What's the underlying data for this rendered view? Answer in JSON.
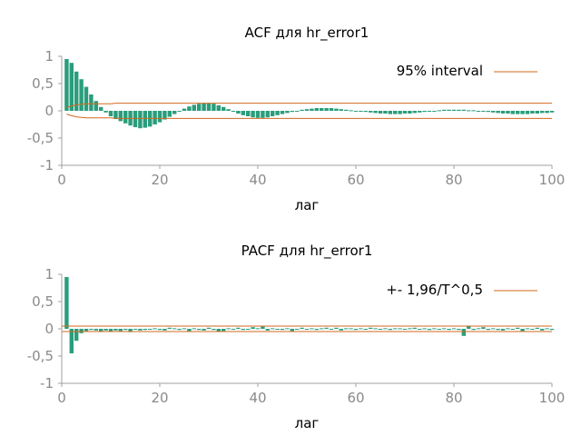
{
  "chart_data": [
    {
      "type": "bar",
      "title": "ACF для hr_error1",
      "xlabel": "лаг",
      "ylabel": "",
      "xlim": [
        0,
        100
      ],
      "ylim": [
        -1,
        1
      ],
      "yticks": [
        "1",
        "0,5",
        "0",
        "-0,5",
        "-1"
      ],
      "ytick_values": [
        1,
        0.5,
        0,
        -0.5,
        -1
      ],
      "xticks": [
        "0",
        "20",
        "40",
        "60",
        "80",
        "100"
      ],
      "xtick_values": [
        0,
        20,
        40,
        60,
        80,
        100
      ],
      "legend": {
        "label": "95% interval",
        "placement": "top-right"
      },
      "bar_color": "#2a9d7c",
      "band_color": "#d2691e",
      "lags": [
        1,
        2,
        3,
        4,
        5,
        6,
        7,
        8,
        9,
        10,
        11,
        12,
        13,
        14,
        15,
        16,
        17,
        18,
        19,
        20,
        21,
        22,
        23,
        24,
        25,
        26,
        27,
        28,
        29,
        30,
        31,
        32,
        33,
        34,
        35,
        36,
        37,
        38,
        39,
        40,
        41,
        42,
        43,
        44,
        45,
        46,
        47,
        48,
        49,
        50,
        51,
        52,
        53,
        54,
        55,
        56,
        57,
        58,
        59,
        60,
        61,
        62,
        63,
        64,
        65,
        66,
        67,
        68,
        69,
        70,
        71,
        72,
        73,
        74,
        75,
        76,
        77,
        78,
        79,
        80,
        81,
        82,
        83,
        84,
        85,
        86,
        87,
        88,
        89,
        90,
        91,
        92,
        93,
        94,
        95,
        96,
        97,
        98,
        99,
        100
      ],
      "values": [
        0.95,
        0.88,
        0.72,
        0.58,
        0.44,
        0.3,
        0.18,
        0.07,
        -0.03,
        -0.1,
        -0.15,
        -0.19,
        -0.23,
        -0.27,
        -0.3,
        -0.32,
        -0.31,
        -0.29,
        -0.25,
        -0.21,
        -0.16,
        -0.11,
        -0.06,
        -0.01,
        0.04,
        0.08,
        0.11,
        0.13,
        0.14,
        0.14,
        0.13,
        0.1,
        0.07,
        0.03,
        -0.01,
        -0.05,
        -0.08,
        -0.1,
        -0.12,
        -0.13,
        -0.13,
        -0.12,
        -0.1,
        -0.08,
        -0.06,
        -0.04,
        -0.02,
        0,
        0.02,
        0.03,
        0.04,
        0.05,
        0.05,
        0.05,
        0.05,
        0.04,
        0.03,
        0.02,
        0.01,
        0,
        -0.01,
        -0.02,
        -0.03,
        -0.04,
        -0.05,
        -0.05,
        -0.06,
        -0.06,
        -0.06,
        -0.05,
        -0.05,
        -0.04,
        -0.03,
        -0.02,
        -0.01,
        0,
        0.01,
        0.02,
        0.02,
        0.02,
        0.02,
        0.02,
        0.01,
        0.01,
        0,
        -0.01,
        -0.02,
        -0.03,
        -0.04,
        -0.05,
        -0.05,
        -0.06,
        -0.06,
        -0.06,
        -0.06,
        -0.05,
        -0.05,
        -0.04,
        -0.04,
        -0.03
      ],
      "band_upper": [
        0.06,
        0.09,
        0.11,
        0.12,
        0.13,
        0.13,
        0.13,
        0.13,
        0.13,
        0.13,
        0.14,
        0.14,
        0.14,
        0.14,
        0.14,
        0.14,
        0.14,
        0.14,
        0.14,
        0.14,
        0.14,
        0.14,
        0.14,
        0.14,
        0.14,
        0.14,
        0.14,
        0.14,
        0.14,
        0.14,
        0.14,
        0.14,
        0.14,
        0.14,
        0.14,
        0.14,
        0.14,
        0.14,
        0.14,
        0.14,
        0.14,
        0.14,
        0.14,
        0.14,
        0.14,
        0.14,
        0.14,
        0.14,
        0.14,
        0.14,
        0.14,
        0.14,
        0.14,
        0.14,
        0.14,
        0.14,
        0.14,
        0.14,
        0.14,
        0.14,
        0.14,
        0.14,
        0.14,
        0.14,
        0.14,
        0.14,
        0.14,
        0.14,
        0.14,
        0.14,
        0.14,
        0.14,
        0.14,
        0.14,
        0.14,
        0.14,
        0.14,
        0.14,
        0.14,
        0.14,
        0.14,
        0.14,
        0.14,
        0.14,
        0.14,
        0.14,
        0.14,
        0.14,
        0.14,
        0.14,
        0.14,
        0.14,
        0.14,
        0.14,
        0.14,
        0.14,
        0.14,
        0.14,
        0.14,
        0.14
      ]
    },
    {
      "type": "bar",
      "title": "PACF для hr_error1",
      "xlabel": "лаг",
      "ylabel": "",
      "xlim": [
        0,
        100
      ],
      "ylim": [
        -1,
        1
      ],
      "yticks": [
        "1",
        "0,5",
        "0",
        "-0,5",
        "-1"
      ],
      "ytick_values": [
        1,
        0.5,
        0,
        -0.5,
        -1
      ],
      "xticks": [
        "0",
        "20",
        "40",
        "60",
        "80",
        "100"
      ],
      "xtick_values": [
        0,
        20,
        40,
        60,
        80,
        100
      ],
      "legend": {
        "label": "+- 1,96/T^0,5",
        "placement": "top-right"
      },
      "bar_color": "#2a9d7c",
      "band_color": "#d2691e",
      "band": 0.05,
      "lags": [
        1,
        2,
        3,
        4,
        5,
        6,
        7,
        8,
        9,
        10,
        11,
        12,
        13,
        14,
        15,
        16,
        17,
        18,
        19,
        20,
        21,
        22,
        23,
        24,
        25,
        26,
        27,
        28,
        29,
        30,
        31,
        32,
        33,
        34,
        35,
        36,
        37,
        38,
        39,
        40,
        41,
        42,
        43,
        44,
        45,
        46,
        47,
        48,
        49,
        50,
        51,
        52,
        53,
        54,
        55,
        56,
        57,
        58,
        59,
        60,
        61,
        62,
        63,
        64,
        65,
        66,
        67,
        68,
        69,
        70,
        71,
        72,
        73,
        74,
        75,
        76,
        77,
        78,
        79,
        80,
        81,
        82,
        83,
        84,
        85,
        86,
        87,
        88,
        89,
        90,
        91,
        92,
        93,
        94,
        95,
        96,
        97,
        98,
        99,
        100
      ],
      "values": [
        0.95,
        -0.45,
        -0.22,
        -0.08,
        -0.04,
        -0.02,
        -0.03,
        -0.05,
        -0.03,
        -0.05,
        -0.03,
        -0.04,
        -0.02,
        -0.06,
        -0.01,
        -0.03,
        -0.02,
        -0.01,
        0.01,
        -0.02,
        -0.03,
        0.02,
        0.01,
        -0.02,
        0.01,
        -0.04,
        0.01,
        -0.02,
        -0.03,
        0.02,
        -0.02,
        -0.05,
        -0.04,
        0.01,
        -0.01,
        0.02,
        -0.02,
        -0.01,
        0.03,
        0.01,
        0.04,
        -0.03,
        0.01,
        -0.01,
        -0.02,
        0.01,
        -0.04,
        -0.01,
        0.02,
        -0.01,
        0.01,
        -0.02,
        0.01,
        0.02,
        -0.01,
        0.02,
        -0.03,
        0.01,
        0.01,
        -0.02,
        0.01,
        -0.01,
        0.02,
        0.01,
        -0.01,
        0.01,
        -0.02,
        0.01,
        0.01,
        -0.01,
        0.01,
        0.02,
        -0.01,
        0.01,
        -0.02,
        0.01,
        -0.01,
        0.01,
        -0.02,
        0.01,
        -0.02,
        -0.13,
        0.05,
        -0.02,
        0.01,
        0.03,
        -0.02,
        0.01,
        -0.02,
        -0.03,
        0.01,
        -0.01,
        0.02,
        -0.04,
        0.01,
        -0.01,
        0.02,
        -0.03,
        0.01,
        -0.02
      ]
    }
  ]
}
